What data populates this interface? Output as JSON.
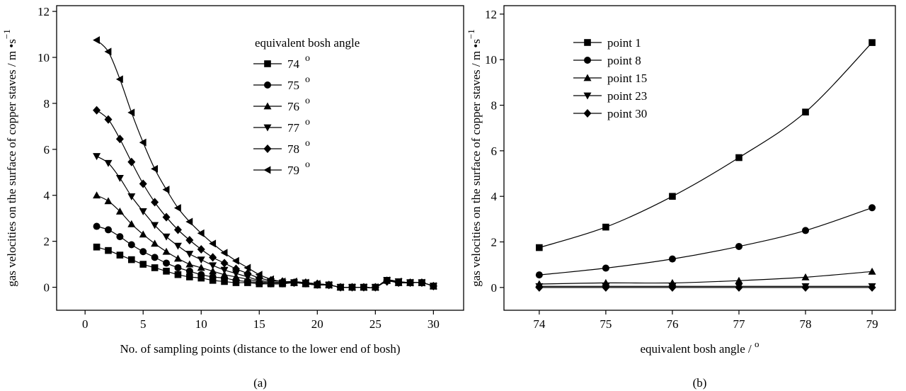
{
  "chart_data": [
    {
      "type": "line",
      "panel_label": "(a)",
      "x_label": "No. of sampling points (distance to the lower end of bosh)",
      "y_label": "gas velocities on the surface of copper staves / m •s",
      "y_label_superscript": "−1",
      "legend_title": "equivalent bosh angle",
      "legend_superscript": "o",
      "x": [
        1,
        2,
        3,
        4,
        5,
        6,
        7,
        8,
        9,
        10,
        11,
        12,
        13,
        14,
        15,
        16,
        17,
        18,
        19,
        20,
        21,
        22,
        23,
        24,
        25,
        26,
        27,
        28,
        29,
        30
      ],
      "xlim": [
        -2.45,
        32.6
      ],
      "xticks": [
        0,
        5,
        10,
        15,
        20,
        25,
        30
      ],
      "ylim": [
        -1,
        12.25
      ],
      "yticks": [
        0,
        2,
        4,
        6,
        8,
        10,
        12
      ],
      "series": [
        {
          "name": "74",
          "marker": "square",
          "color": "#000000",
          "values": [
            1.75,
            1.6,
            1.4,
            1.2,
            1.0,
            0.85,
            0.7,
            0.55,
            0.45,
            0.4,
            0.3,
            0.25,
            0.2,
            0.2,
            0.15,
            0.15,
            0.15,
            0.2,
            0.15,
            0.1,
            0.1,
            0,
            0,
            0,
            0,
            0.3,
            0.2,
            0.2,
            0.2,
            0.05
          ]
        },
        {
          "name": "75",
          "marker": "circle",
          "color": "#000000",
          "values": [
            2.65,
            2.5,
            2.2,
            1.85,
            1.55,
            1.3,
            1.05,
            0.85,
            0.7,
            0.55,
            0.45,
            0.4,
            0.3,
            0.25,
            0.2,
            0.15,
            0.15,
            0.2,
            0.15,
            0.1,
            0.1,
            0,
            0,
            0,
            0,
            0.3,
            0.2,
            0.2,
            0.2,
            0.05
          ]
        },
        {
          "name": "76",
          "marker": "triangle-up",
          "color": "#000000",
          "values": [
            4.0,
            3.75,
            3.3,
            2.75,
            2.3,
            1.9,
            1.55,
            1.25,
            1.0,
            0.85,
            0.7,
            0.55,
            0.45,
            0.35,
            0.25,
            0.2,
            0.2,
            0.2,
            0.15,
            0.1,
            0.1,
            0,
            0,
            0,
            0,
            0.3,
            0.2,
            0.2,
            0.2,
            0.05
          ]
        },
        {
          "name": "77",
          "marker": "triangle-down",
          "color": "#000000",
          "values": [
            5.7,
            5.4,
            4.75,
            3.95,
            3.3,
            2.7,
            2.2,
            1.8,
            1.45,
            1.2,
            0.95,
            0.75,
            0.6,
            0.45,
            0.3,
            0.25,
            0.2,
            0.2,
            0.2,
            0.1,
            0.1,
            0,
            0,
            0,
            0,
            0.3,
            0.25,
            0.2,
            0.2,
            0.05
          ]
        },
        {
          "name": "78",
          "marker": "diamond",
          "color": "#000000",
          "values": [
            7.7,
            7.3,
            6.45,
            5.45,
            4.5,
            3.7,
            3.05,
            2.5,
            2.05,
            1.65,
            1.3,
            1.05,
            0.8,
            0.6,
            0.4,
            0.3,
            0.25,
            0.2,
            0.2,
            0.15,
            0.1,
            0,
            0,
            0,
            0,
            0.25,
            0.2,
            0.2,
            0.2,
            0.05
          ]
        },
        {
          "name": "79",
          "marker": "triangle-left",
          "color": "#000000",
          "values": [
            10.75,
            10.25,
            9.05,
            7.6,
            6.3,
            5.15,
            4.25,
            3.45,
            2.85,
            2.35,
            1.9,
            1.5,
            1.15,
            0.85,
            0.55,
            0.35,
            0.25,
            0.25,
            0.2,
            0.15,
            0.1,
            0,
            0,
            0,
            0,
            0.3,
            0.25,
            0.2,
            0.2,
            0.05
          ]
        }
      ]
    },
    {
      "type": "line",
      "panel_label": "(b)",
      "x_label": "equivalent bosh angle / ",
      "x_label_superscript": "o",
      "y_label": "gas velocities on the surface of copper staves / m •s",
      "y_label_superscript": "−1",
      "x": [
        74,
        75,
        76,
        77,
        78,
        79
      ],
      "xlim": [
        73.47,
        79.35
      ],
      "xticks": [
        74,
        75,
        76,
        77,
        78,
        79
      ],
      "ylim": [
        -1,
        12.37
      ],
      "yticks": [
        0,
        2,
        4,
        6,
        8,
        10,
        12
      ],
      "series": [
        {
          "name": "point 1",
          "marker": "square",
          "color": "#000000",
          "values": [
            1.75,
            2.65,
            4.0,
            5.7,
            7.7,
            10.75
          ]
        },
        {
          "name": "point 8",
          "marker": "circle",
          "color": "#000000",
          "values": [
            0.55,
            0.85,
            1.25,
            1.8,
            2.5,
            3.5
          ]
        },
        {
          "name": "point 15",
          "marker": "triangle-up",
          "color": "#000000",
          "values": [
            0.15,
            0.2,
            0.2,
            0.3,
            0.45,
            0.7
          ]
        },
        {
          "name": "point 23",
          "marker": "triangle-down",
          "color": "#000000",
          "values": [
            0.05,
            0.05,
            0.05,
            0.05,
            0.05,
            0.05
          ]
        },
        {
          "name": "point 30",
          "marker": "diamond",
          "color": "#000000",
          "values": [
            0,
            0,
            0,
            0,
            0,
            0
          ]
        }
      ]
    }
  ]
}
